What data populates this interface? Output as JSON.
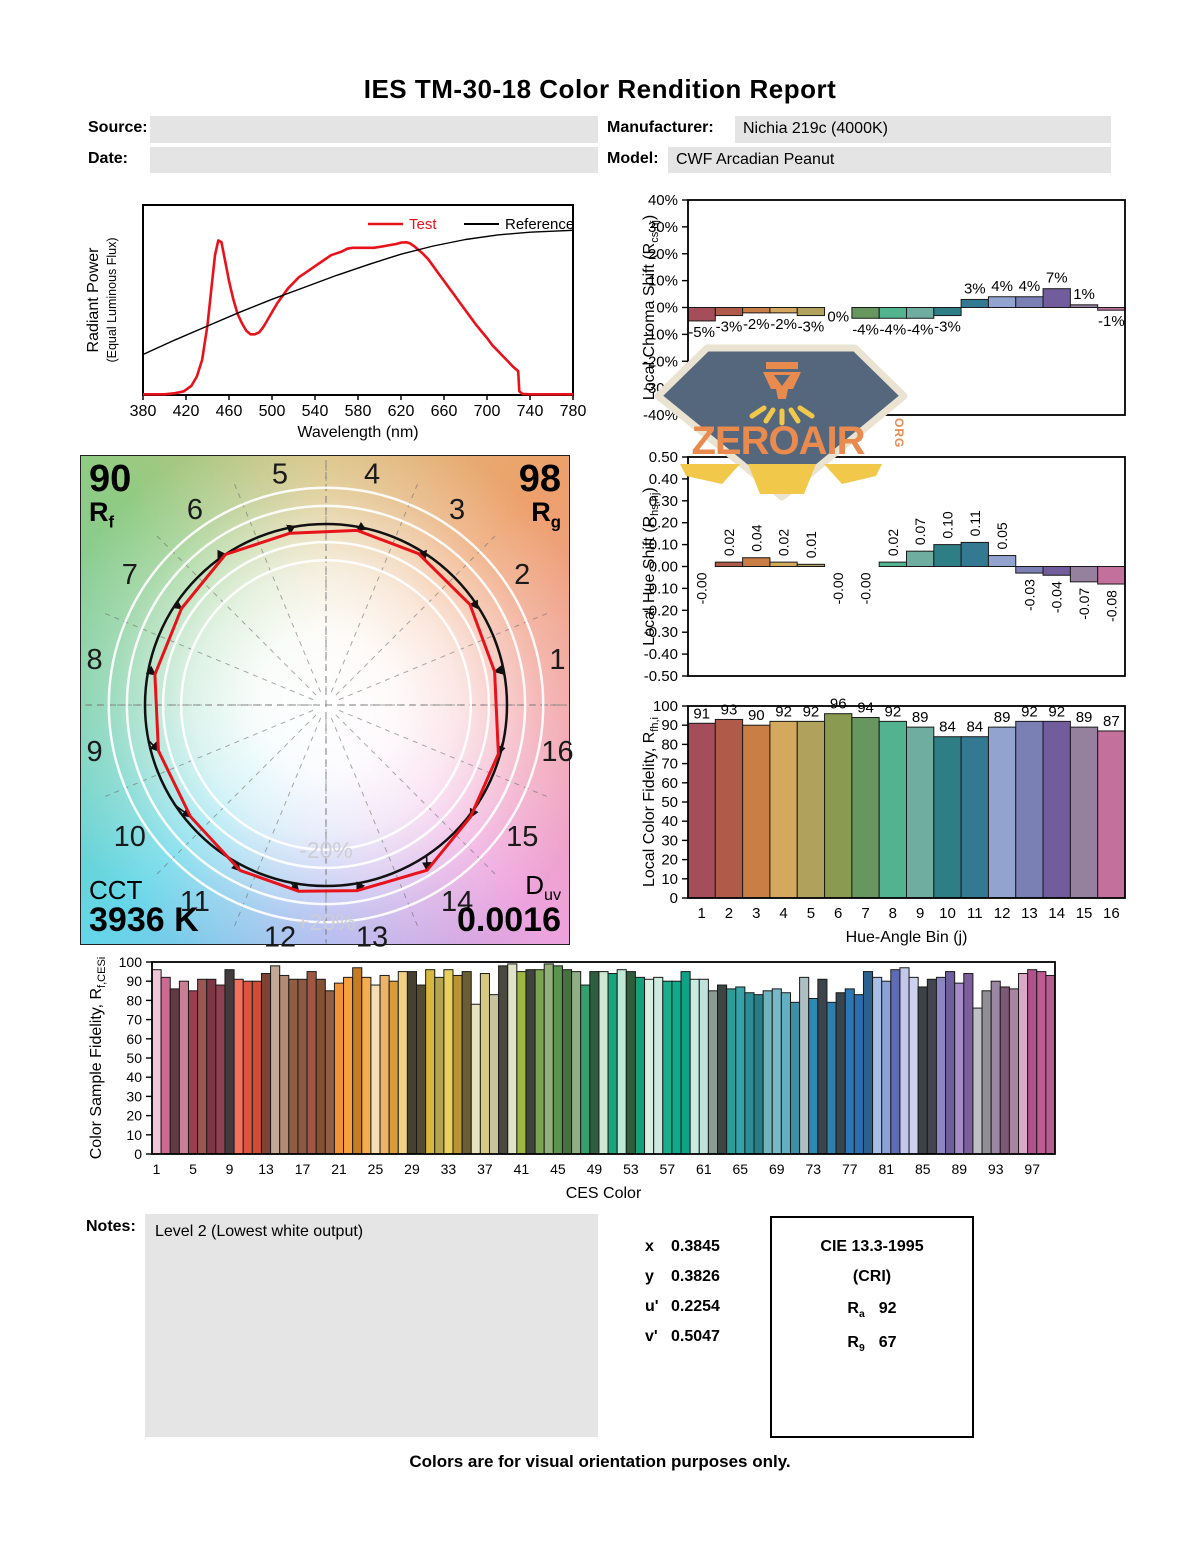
{
  "title": "IES TM-30-18 Color Rendition Report",
  "header": {
    "source_label": "Source:",
    "source_value": "",
    "date_label": "Date:",
    "date_value": "",
    "manufacturer_label": "Manufacturer:",
    "manufacturer_value": "Nichia 219c (4000K)",
    "model_label": "Model:",
    "model_value": "CWF Arcadian Peanut"
  },
  "watermark": {
    "line": "ZEROAIR",
    "org": "ORG"
  },
  "cvg_panel": {
    "rf_value": "90",
    "rf_label": "R",
    "rf_sub": "f",
    "rg_value": "98",
    "rg_label": "R",
    "rg_sub": "g",
    "cct_label": "CCT",
    "cct_value": "3936 K",
    "duv_label": "D",
    "duv_sub": "uv",
    "duv_value": "0.0016"
  },
  "notes": {
    "label": "Notes:",
    "text": "Level 2 (Lowest white output)"
  },
  "chromaticity": {
    "rows": [
      {
        "label": "x",
        "value": "0.3845"
      },
      {
        "label": "y",
        "value": "0.3826"
      },
      {
        "label": "u'",
        "value": "0.2254"
      },
      {
        "label": "v'",
        "value": "0.5047"
      }
    ]
  },
  "cri_box": {
    "title": "CIE 13.3-1995",
    "subtitle": "(CRI)",
    "ra_label": "R",
    "ra_sub": "a",
    "ra_value": "92",
    "r9_label": "R",
    "r9_sub": "9",
    "r9_value": "67"
  },
  "footer": "Colors are for visual orientation purposes only.",
  "hue_bin_colors": [
    "#a64d5c",
    "#b05a4a",
    "#c87e45",
    "#d4a95e",
    "#b0a25c",
    "#8a9a50",
    "#67975f",
    "#52b391",
    "#6fada0",
    "#2d7f85",
    "#337992",
    "#93a3cf",
    "#7b80b4",
    "#715d9b",
    "#95809f",
    "#c4709c"
  ],
  "chart_data": {
    "spd": {
      "type": "line",
      "xlabel": "Wavelength (nm)",
      "ylabel": "Radiant Power",
      "ylabel_sub": "(Equal Luminous Flux)",
      "xlim": [
        380,
        780
      ],
      "xticks": [
        380,
        420,
        460,
        500,
        540,
        580,
        620,
        660,
        700,
        740,
        780
      ],
      "legend": [
        {
          "name": "Test",
          "color": "#e8121a"
        },
        {
          "name": "Reference",
          "color": "#000000"
        }
      ],
      "series": [
        {
          "name": "Test",
          "color": "#e8121a",
          "width": 2.6,
          "points": [
            [
              380,
              0.004
            ],
            [
              400,
              0.004
            ],
            [
              410,
              0.01
            ],
            [
              418,
              0.02
            ],
            [
              425,
              0.05
            ],
            [
              430,
              0.1
            ],
            [
              435,
              0.19
            ],
            [
              440,
              0.38
            ],
            [
              444,
              0.6
            ],
            [
              447,
              0.76
            ],
            [
              450,
              0.84
            ],
            [
              453,
              0.83
            ],
            [
              456,
              0.74
            ],
            [
              460,
              0.62
            ],
            [
              464,
              0.52
            ],
            [
              468,
              0.44
            ],
            [
              472,
              0.39
            ],
            [
              476,
              0.35
            ],
            [
              480,
              0.33
            ],
            [
              484,
              0.33
            ],
            [
              488,
              0.34
            ],
            [
              492,
              0.37
            ],
            [
              496,
              0.41
            ],
            [
              500,
              0.45
            ],
            [
              505,
              0.5
            ],
            [
              510,
              0.54
            ],
            [
              515,
              0.58
            ],
            [
              520,
              0.61
            ],
            [
              525,
              0.64
            ],
            [
              530,
              0.66
            ],
            [
              535,
              0.68
            ],
            [
              540,
              0.7
            ],
            [
              545,
              0.72
            ],
            [
              550,
              0.74
            ],
            [
              555,
              0.76
            ],
            [
              560,
              0.77
            ],
            [
              565,
              0.78
            ],
            [
              570,
              0.795
            ],
            [
              575,
              0.8
            ],
            [
              580,
              0.8
            ],
            [
              585,
              0.8
            ],
            [
              590,
              0.8
            ],
            [
              595,
              0.8
            ],
            [
              600,
              0.805
            ],
            [
              605,
              0.81
            ],
            [
              610,
              0.815
            ],
            [
              615,
              0.82
            ],
            [
              620,
              0.828
            ],
            [
              625,
              0.83
            ],
            [
              628,
              0.825
            ],
            [
              632,
              0.81
            ],
            [
              636,
              0.79
            ],
            [
              640,
              0.77
            ],
            [
              645,
              0.74
            ],
            [
              650,
              0.7
            ],
            [
              655,
              0.66
            ],
            [
              660,
              0.62
            ],
            [
              665,
              0.58
            ],
            [
              670,
              0.54
            ],
            [
              675,
              0.5
            ],
            [
              680,
              0.46
            ],
            [
              685,
              0.42
            ],
            [
              690,
              0.38
            ],
            [
              695,
              0.345
            ],
            [
              700,
              0.31
            ],
            [
              705,
              0.27
            ],
            [
              710,
              0.24
            ],
            [
              715,
              0.21
            ],
            [
              720,
              0.18
            ],
            [
              724,
              0.155
            ],
            [
              727,
              0.14
            ],
            [
              729,
              0.13
            ],
            [
              730,
              0.02
            ],
            [
              733,
              0.006
            ],
            [
              740,
              0.004
            ],
            [
              780,
              0.004
            ]
          ]
        },
        {
          "name": "Reference",
          "color": "#000000",
          "width": 1.4,
          "points": [
            [
              380,
              0.22
            ],
            [
              410,
              0.3
            ],
            [
              440,
              0.375
            ],
            [
              470,
              0.45
            ],
            [
              500,
              0.52
            ],
            [
              530,
              0.585
            ],
            [
              560,
              0.65
            ],
            [
              590,
              0.71
            ],
            [
              620,
              0.765
            ],
            [
              650,
              0.81
            ],
            [
              680,
              0.845
            ],
            [
              710,
              0.87
            ],
            [
              740,
              0.885
            ],
            [
              780,
              0.895
            ]
          ]
        }
      ]
    },
    "chroma_shift": {
      "type": "bar",
      "ylabel": "Local Chroma Shift (R",
      "ylabel_sub": "cs,hj",
      "ylabel_close": ")",
      "ylim": [
        -40,
        40
      ],
      "ytick_vals": [
        40,
        30,
        20,
        10,
        0,
        -10,
        -20,
        -30,
        -40
      ],
      "ytick_labels": [
        "40%",
        "30%",
        "20%",
        "10%",
        "0%",
        "-10%",
        "-20%",
        "-30%",
        "-40%"
      ],
      "values": [
        -5,
        -3,
        -2,
        -2,
        -3,
        0,
        -4,
        -4,
        -4,
        -3,
        3,
        4,
        4,
        7,
        1,
        -1
      ],
      "labels": [
        "-5%",
        "-3%",
        "-2%",
        "-2%",
        "-3%",
        "0%",
        "-4%",
        "-4%",
        "-4%",
        "-3%",
        "3%",
        "4%",
        "4%",
        "7%",
        "1%",
        "-1%"
      ],
      "label_style": "plain"
    },
    "hue_shift": {
      "type": "bar",
      "ylabel": "Local Hue Shift (R",
      "ylabel_sub": "hs,hj",
      "ylabel_close": ")",
      "ylim": [
        -0.5,
        0.5
      ],
      "ytick_vals": [
        0.5,
        0.4,
        0.3,
        0.2,
        0.1,
        0,
        -0.1,
        -0.2,
        -0.3,
        -0.4,
        -0.5
      ],
      "ytick_labels": [
        "0.50",
        "0.40",
        "0.30",
        "0.20",
        "0.10",
        "0.00",
        "-0.10",
        "-0.20",
        "-0.30",
        "-0.40",
        "-0.50"
      ],
      "values": [
        0,
        0.02,
        0.04,
        0.02,
        0.01,
        0,
        0,
        0.02,
        0.07,
        0.1,
        0.11,
        0.05,
        -0.03,
        -0.04,
        -0.07,
        -0.08
      ],
      "labels": [
        "-0.00",
        "0.02",
        "0.04",
        "0.02",
        "0.01",
        "-0.00",
        "-0.00",
        "0.02",
        "0.07",
        "0.10",
        "0.11",
        "0.05",
        "-0.03",
        "-0.04",
        "-0.07",
        "-0.08"
      ],
      "label_style": "rotated"
    },
    "local_fidelity": {
      "type": "bar",
      "ylabel": "Local Color Fidelity, R",
      "ylabel_sub": "fh,i",
      "ylabel_close": "",
      "xlabel": "Hue-Angle Bin (j)",
      "ylim": [
        0,
        100
      ],
      "ytick_vals": [
        100,
        90,
        80,
        70,
        60,
        50,
        40,
        30,
        20,
        10,
        0
      ],
      "ytick_labels": [
        "100",
        "90",
        "80",
        "70",
        "60",
        "50",
        "40",
        "30",
        "20",
        "10",
        "0"
      ],
      "values": [
        91,
        93,
        90,
        92,
        92,
        96,
        94,
        92,
        89,
        84,
        84,
        89,
        92,
        92,
        89,
        87
      ],
      "labels": [
        "91",
        "93",
        "90",
        "92",
        "92",
        "96",
        "94",
        "92",
        "89",
        "84",
        "84",
        "89",
        "92",
        "92",
        "89",
        "87"
      ],
      "label_style": "top",
      "xtick_every": 1,
      "xtick_start": 1
    },
    "ces_fidelity": {
      "type": "bar",
      "ylabel": "Color Sample Fidelity, R",
      "ylabel_sub": "f,CESi",
      "ylabel_close": "",
      "xlabel": "CES Color",
      "ylim": [
        0,
        100
      ],
      "ytick_vals": [
        100,
        90,
        80,
        70,
        60,
        50,
        40,
        30,
        20,
        10,
        0
      ],
      "ytick_labels": [
        "100",
        "90",
        "80",
        "70",
        "60",
        "50",
        "40",
        "30",
        "20",
        "10",
        "0"
      ],
      "values": [
        96,
        92,
        86,
        90,
        85,
        91,
        91,
        88,
        96,
        91,
        90,
        90,
        94,
        98,
        93,
        91,
        91,
        95,
        91,
        85,
        89,
        92,
        97,
        92,
        88,
        93,
        90,
        95,
        95,
        88,
        96,
        92,
        96,
        93,
        95,
        78,
        94,
        83,
        98,
        99,
        95,
        96,
        96,
        99,
        98,
        96,
        95,
        88,
        95,
        95,
        94,
        96,
        95,
        92,
        91,
        92,
        90,
        90,
        95,
        91,
        91,
        85,
        88,
        86,
        87,
        84,
        83,
        85,
        86,
        84,
        79,
        92,
        81,
        91,
        79,
        84,
        86,
        83,
        95,
        92,
        90,
        96,
        97,
        92,
        87,
        91,
        92,
        95,
        89,
        94,
        76,
        85,
        90,
        87,
        86,
        94,
        96,
        95,
        93
      ],
      "colors": [
        "#f0c4d9",
        "#cd6a92",
        "#613a44",
        "#c97f93",
        "#98404f",
        "#9b5553",
        "#7c3743",
        "#8f4051",
        "#423a3c",
        "#f1715d",
        "#dc5341",
        "#d24b34",
        "#7e4335",
        "#c3a895",
        "#b38b73",
        "#905d42",
        "#8b5841",
        "#9f5743",
        "#865130",
        "#905e46",
        "#f09235",
        "#f6a13e",
        "#c77c21",
        "#f4ac4f",
        "#f5ddb5",
        "#edb468",
        "#da9b3d",
        "#f2d182",
        "#45402f",
        "#554b2e",
        "#d8b83c",
        "#b5a44e",
        "#e8d05a",
        "#b89433",
        "#6b5d34",
        "#e6e2c0",
        "#d6ca82",
        "#c9c4a0",
        "#4a4a40",
        "#dfe3c8",
        "#9db83f",
        "#3e453c",
        "#7aa352",
        "#94b07a",
        "#59954e",
        "#47703f",
        "#8fae84",
        "#34a16c",
        "#2e5e3f",
        "#cfe8d2",
        "#17a67c",
        "#bfe8d4",
        "#2f5d3c",
        "#16a077",
        "#d8efe2",
        "#cdeade",
        "#17b08c",
        "#12a98a",
        "#0ea386",
        "#c9ece2",
        "#bfe3da",
        "#8a9b94",
        "#3c4543",
        "#2a9d98",
        "#35a3a8",
        "#2b8e96",
        "#277c88",
        "#6fb3bd",
        "#77b8c6",
        "#63afc2",
        "#3d8fa8",
        "#aebfc4",
        "#2d8ab4",
        "#3c454b",
        "#2e7fae",
        "#36454e",
        "#2b76b4",
        "#2b6eb0",
        "#2b618f",
        "#a9c0e4",
        "#8ba2d8",
        "#5d6cb4",
        "#c3c8ea",
        "#cdd0ee",
        "#3e4148",
        "#43454e",
        "#8c86c0",
        "#6d5f9e",
        "#a58cc8",
        "#7e5f9e",
        "#bdc0c2",
        "#918e96",
        "#9b86a4",
        "#7c5874",
        "#a884a0",
        "#d9a8c6",
        "#b2518c",
        "#c05a92",
        "#b55f8e"
      ],
      "label_style": "none",
      "xtick_every": 4,
      "xtick_start": 1
    },
    "cvg": {
      "type": "polar-vector",
      "rf": 90,
      "rg": 98,
      "cct": "3936 K",
      "duv": "0.0016",
      "bins": [
        1,
        2,
        3,
        4,
        5,
        6,
        7,
        8,
        9,
        10,
        11,
        12,
        13,
        14,
        15,
        16
      ],
      "ring_label_inner": "-20%",
      "ring_label_outer": "+20%",
      "ring_radii_pct": [
        80,
        90,
        110,
        120
      ]
    }
  }
}
